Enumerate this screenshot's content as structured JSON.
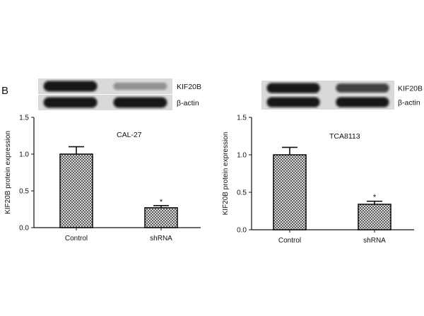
{
  "panel_label": "B",
  "blot_labels": {
    "top": "KIF20B",
    "bottom": "β-actin"
  },
  "colors": {
    "bar_hatch": "#4a4a4a",
    "axis": "#111111",
    "band": "#0c0c0c",
    "blot_bg": "#d9d9d9"
  },
  "chart_data": [
    {
      "type": "bar",
      "title": "CAL-27",
      "ylabel": "KIF20B protein expression",
      "xlabel": "",
      "categories": [
        "Control",
        "shRNA"
      ],
      "values": [
        1.0,
        0.27
      ],
      "error": [
        0.1,
        0.03
      ],
      "significance": [
        "",
        "*"
      ],
      "ylim": [
        0,
        1.5
      ],
      "yticks": [
        "0.0",
        "0.5",
        "1.0",
        "1.5"
      ],
      "grid": false,
      "blot_band_intensity": {
        "KIF20B": [
          0.95,
          0.35
        ],
        "β-actin": [
          0.95,
          0.95
        ]
      }
    },
    {
      "type": "bar",
      "title": "TCA8113",
      "ylabel": "KIF20B protein expression",
      "xlabel": "",
      "categories": [
        "Control",
        "shRNA"
      ],
      "values": [
        1.0,
        0.34
      ],
      "error": [
        0.1,
        0.04
      ],
      "significance": [
        "",
        "*"
      ],
      "ylim": [
        0,
        1.5
      ],
      "yticks": [
        "0.0",
        "0.5",
        "1.0",
        "1.5"
      ],
      "grid": false,
      "blot_band_intensity": {
        "KIF20B": [
          0.95,
          0.75
        ],
        "β-actin": [
          0.95,
          0.95
        ]
      }
    }
  ]
}
